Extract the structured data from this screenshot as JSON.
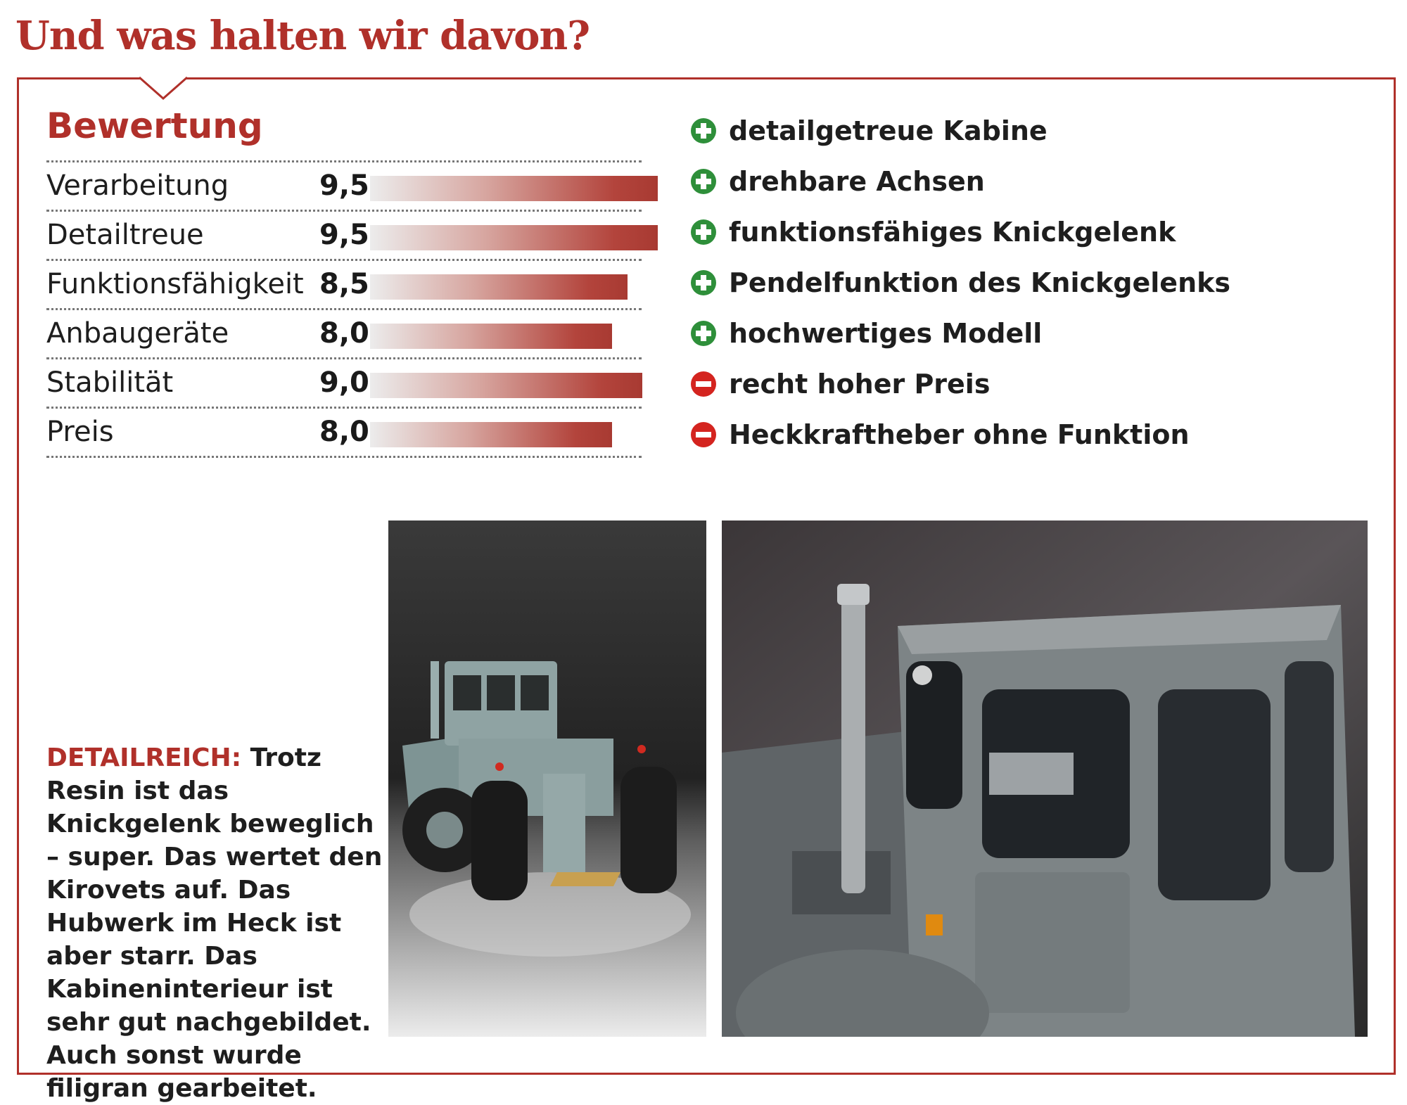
{
  "headline": "Und was halten wir davon?",
  "rating": {
    "title": "Bewertung",
    "max_score": 10,
    "rows": [
      {
        "label": "Verarbeitung",
        "score": "9,5",
        "value": 9.5
      },
      {
        "label": "Detailtreue",
        "score": "9,5",
        "value": 9.5
      },
      {
        "label": "Funktionsfähigkeit",
        "score": "8,5",
        "value": 8.5
      },
      {
        "label": "Anbaugeräte",
        "score": "8,0",
        "value": 8.0
      },
      {
        "label": "Stabilität",
        "score": "9,0",
        "value": 9.0
      },
      {
        "label": "Preis",
        "score": "8,0",
        "value": 8.0
      }
    ]
  },
  "pros_cons": [
    {
      "type": "plus",
      "text": "detailgetreue Kabine"
    },
    {
      "type": "plus",
      "text": "drehbare Achsen"
    },
    {
      "type": "plus",
      "text": "funktionsfähiges Knickgelenk"
    },
    {
      "type": "plus",
      "text": "Pendelfunktion des Knickgelenks"
    },
    {
      "type": "plus",
      "text": "hochwertiges Modell"
    },
    {
      "type": "minus",
      "text": "recht hoher Preis"
    },
    {
      "type": "minus",
      "text": "Heckkraftheber ohne Funktion"
    }
  ],
  "caption": {
    "lead": "DETAILREICH:",
    "text": "Trotz Resin ist das Knickgelenk beweglich – super. Das wertet den Kirovets auf. Das Hubwerk im Heck ist aber starr. Das Kabineninterieur ist sehr gut nachgebildet. Auch sonst wurde filigran gearbeitet."
  },
  "colors": {
    "accent": "#b0302a",
    "plus_icon": "#2e8f3a",
    "minus_icon": "#d4241f",
    "tractor": "#8fa3a3"
  }
}
